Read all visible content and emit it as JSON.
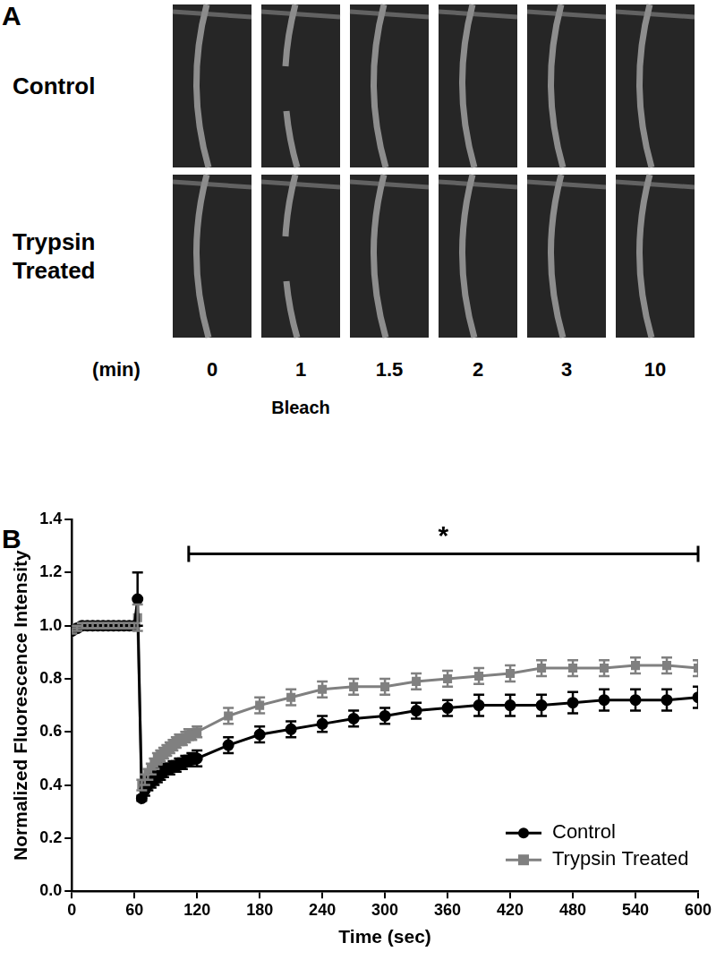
{
  "figure": {
    "panel_a": {
      "label": "A",
      "rows": [
        "Control",
        "Trypsin Treated"
      ],
      "time_label": "(min)",
      "times": [
        0,
        1,
        1.5,
        2,
        3,
        10
      ],
      "bleach_label": "Bleach",
      "bleach_index": 1
    },
    "panel_b_label": "B"
  },
  "chart_data": {
    "type": "line",
    "x": [
      0,
      5,
      10,
      15,
      20,
      25,
      30,
      35,
      40,
      45,
      50,
      55,
      60,
      63,
      67,
      70,
      73,
      76,
      79,
      82,
      85,
      88,
      91,
      94,
      97,
      100,
      103,
      106,
      109,
      112,
      115,
      120,
      150,
      180,
      210,
      240,
      270,
      300,
      330,
      360,
      390,
      420,
      450,
      480,
      510,
      540,
      570,
      600
    ],
    "series": [
      {
        "name": "Control",
        "color": "#000000",
        "marker": "circle",
        "line_style": "solid",
        "values": [
          0.98,
          0.99,
          1.0,
          1.0,
          1.0,
          1.0,
          1.0,
          1.0,
          1.0,
          1.0,
          1.0,
          1.0,
          1.0,
          1.1,
          0.35,
          0.38,
          0.4,
          0.41,
          0.42,
          0.43,
          0.44,
          0.45,
          0.46,
          0.46,
          0.47,
          0.47,
          0.48,
          0.48,
          0.49,
          0.49,
          0.5,
          0.5,
          0.55,
          0.59,
          0.61,
          0.63,
          0.65,
          0.66,
          0.68,
          0.69,
          0.7,
          0.7,
          0.7,
          0.71,
          0.72,
          0.72,
          0.72,
          0.73
        ],
        "errors": [
          0.01,
          0.01,
          0.01,
          0.01,
          0.01,
          0.01,
          0.01,
          0.01,
          0.01,
          0.01,
          0.01,
          0.01,
          0.01,
          0.1,
          0.01,
          0.02,
          0.02,
          0.02,
          0.02,
          0.02,
          0.02,
          0.02,
          0.02,
          0.02,
          0.02,
          0.02,
          0.02,
          0.02,
          0.02,
          0.02,
          0.02,
          0.03,
          0.03,
          0.03,
          0.03,
          0.03,
          0.03,
          0.03,
          0.03,
          0.03,
          0.04,
          0.04,
          0.04,
          0.04,
          0.04,
          0.04,
          0.04,
          0.04
        ]
      },
      {
        "name": "Trypsin Treated",
        "color": "#808080",
        "marker": "square",
        "line_style": "solid",
        "values": [
          0.98,
          0.99,
          1.0,
          1.0,
          1.0,
          1.0,
          1.0,
          1.0,
          1.0,
          1.0,
          1.0,
          1.0,
          1.0,
          1.03,
          0.4,
          0.42,
          0.44,
          0.46,
          0.48,
          0.5,
          0.51,
          0.52,
          0.53,
          0.54,
          0.55,
          0.56,
          0.57,
          0.57,
          0.58,
          0.59,
          0.59,
          0.6,
          0.66,
          0.7,
          0.73,
          0.76,
          0.77,
          0.77,
          0.79,
          0.8,
          0.81,
          0.82,
          0.84,
          0.84,
          0.84,
          0.85,
          0.85,
          0.84
        ],
        "errors": [
          0.01,
          0.01,
          0.01,
          0.01,
          0.01,
          0.01,
          0.01,
          0.01,
          0.01,
          0.01,
          0.01,
          0.01,
          0.01,
          0.05,
          0.02,
          0.02,
          0.02,
          0.02,
          0.02,
          0.02,
          0.02,
          0.02,
          0.02,
          0.02,
          0.02,
          0.02,
          0.02,
          0.02,
          0.02,
          0.02,
          0.02,
          0.02,
          0.03,
          0.03,
          0.03,
          0.03,
          0.03,
          0.03,
          0.03,
          0.03,
          0.03,
          0.03,
          0.03,
          0.03,
          0.03,
          0.03,
          0.03,
          0.03
        ]
      }
    ],
    "x_label": "Time (sec)",
    "y_label": "Normalized Fluorescence Intensity",
    "xlim": [
      0,
      600
    ],
    "xticks": [
      0,
      60,
      120,
      180,
      240,
      300,
      360,
      420,
      480,
      540,
      600
    ],
    "ylim": [
      0,
      1.4
    ],
    "yticks": [
      {
        "value": 0,
        "label": "0.0"
      },
      {
        "value": 0.2,
        "label": "0.2"
      },
      {
        "value": 0.4,
        "label": "0.4"
      },
      {
        "value": 0.6,
        "label": "0.6"
      },
      {
        "value": 0.8,
        "label": "0.8"
      },
      {
        "value": 1.0,
        "label": "1.0"
      },
      {
        "value": 1.2,
        "label": "1.2"
      },
      {
        "value": 1.4,
        "label": "1.4"
      }
    ],
    "annotations": [
      {
        "text": "*",
        "x_start": 112,
        "x_end": 600,
        "y": 1.27
      }
    ],
    "grid": false,
    "legend": "bottom right"
  }
}
